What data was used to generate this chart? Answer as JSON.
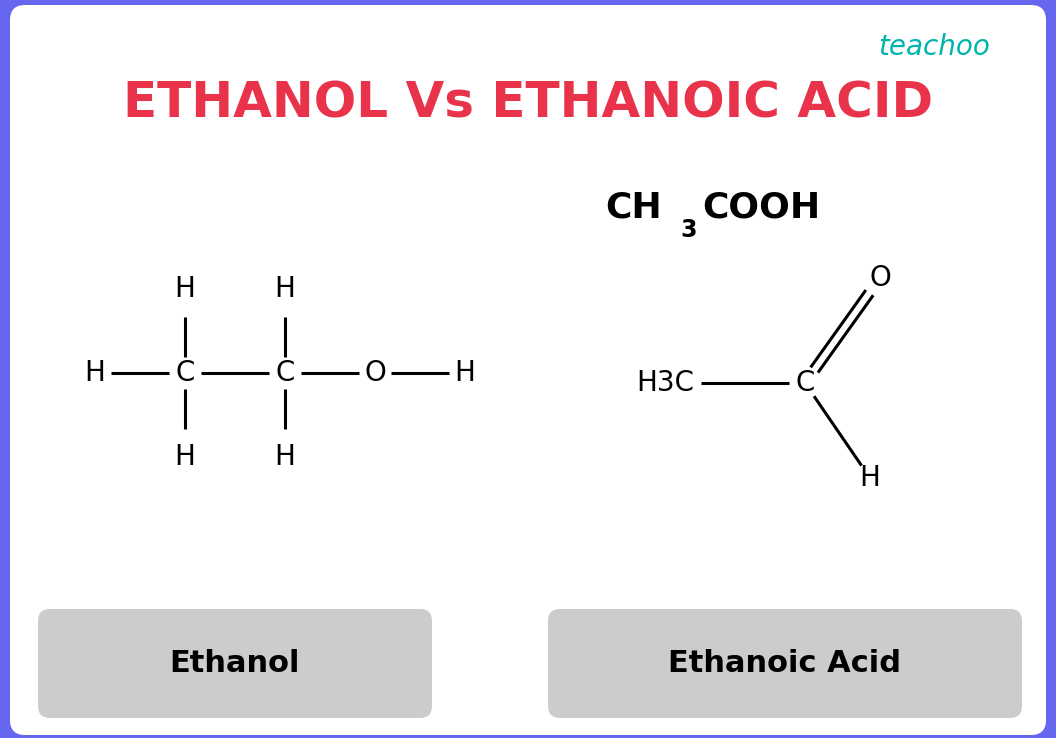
{
  "title": "ETHANOL Vs ETHANOIC ACID",
  "title_color": "#E8334A",
  "bg_color": "#FFFFFF",
  "border_color": "#6666EE",
  "teachoo_color": "#00B5AD",
  "label_bg": "#CCCCCC",
  "ethanol_label": "Ethanol",
  "ethanoic_label": "Ethanoic Acid",
  "figsize": [
    10.56,
    7.38
  ],
  "dpi": 100
}
